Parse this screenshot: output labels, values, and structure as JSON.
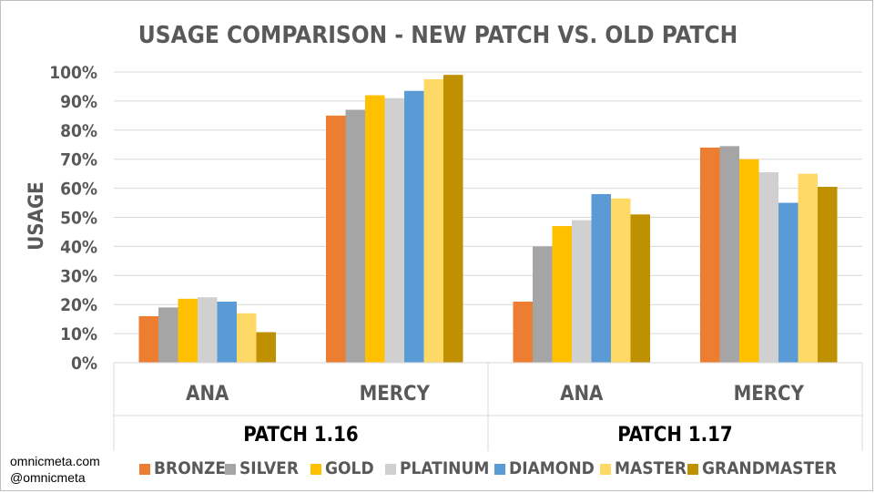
{
  "credits": {
    "site": "omnicmeta.com",
    "handle": "@omnicmeta"
  },
  "chart_data": {
    "type": "bar",
    "title": "USAGE COMPARISON - NEW PATCH VS. OLD PATCH",
    "xlabel": "",
    "ylabel": "USAGE",
    "ylim": [
      0,
      100
    ],
    "yticks": [
      "0%",
      "10%",
      "20%",
      "30%",
      "40%",
      "50%",
      "60%",
      "70%",
      "80%",
      "90%",
      "100%"
    ],
    "grid": true,
    "legend_position": "bottom",
    "groups": [
      {
        "label": "PATCH 1.16",
        "categories": [
          "ANA",
          "MERCY"
        ]
      },
      {
        "label": "PATCH 1.17",
        "categories": [
          "ANA",
          "MERCY"
        ]
      }
    ],
    "categories": [
      "ANA",
      "MERCY",
      "ANA",
      "MERCY"
    ],
    "series": [
      {
        "name": "BRONZE",
        "color": "#ed7d31",
        "values": [
          16,
          85,
          21,
          74
        ]
      },
      {
        "name": "SILVER",
        "color": "#a5a5a5",
        "values": [
          19,
          87,
          40,
          74.5
        ]
      },
      {
        "name": "GOLD",
        "color": "#ffc000",
        "values": [
          22,
          92,
          47,
          70
        ]
      },
      {
        "name": "PLATINUM",
        "color": "#d0d0d0",
        "values": [
          22.5,
          91,
          49,
          65.5
        ]
      },
      {
        "name": "DIAMOND",
        "color": "#5b9bd5",
        "values": [
          21,
          93.5,
          58,
          55
        ]
      },
      {
        "name": "MASTER",
        "color": "#ffd966",
        "values": [
          17,
          97.5,
          56.5,
          65
        ]
      },
      {
        "name": "GRANDMASTER",
        "color": "#bf9000",
        "values": [
          10.5,
          99,
          51,
          60.5
        ]
      }
    ]
  }
}
